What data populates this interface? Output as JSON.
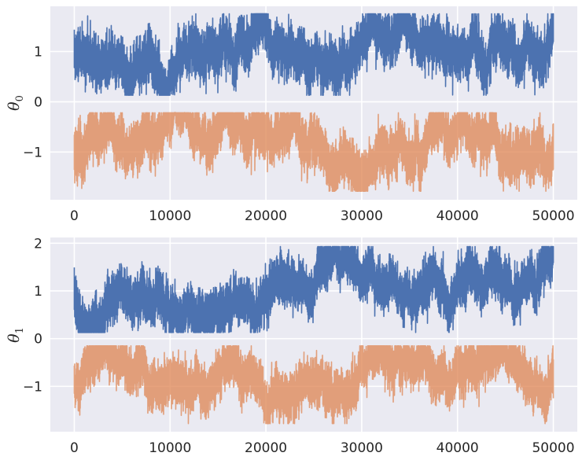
{
  "figure": {
    "background": "#ffffff"
  },
  "style": {
    "axes_facecolor": "#EAEAF2",
    "grid_color": "#ffffff",
    "text_color": "#262626",
    "series_colors": [
      "#4C72B0",
      "#DD8452"
    ]
  },
  "chart_data": [
    {
      "type": "line",
      "ylabel": "θ0",
      "ylabel_main": "θ",
      "ylabel_sub": "0",
      "xlim": [
        -2500,
        52500
      ],
      "ylim": [
        -1.95,
        1.9
      ],
      "xticks": [
        0,
        10000,
        20000,
        30000,
        40000,
        50000
      ],
      "xtick_labels": [
        "0",
        "10000",
        "20000",
        "30000",
        "40000",
        "50000"
      ],
      "yticks": [
        1,
        0,
        -1
      ],
      "ytick_labels": [
        "1",
        "0",
        "−1"
      ],
      "grid": true,
      "legend": "none",
      "n_samples": 50000,
      "series": [
        {
          "color": "#4C72B0",
          "mean": 1.0,
          "y_min": 0.13,
          "y_max": 1.75,
          "seed": 11
        },
        {
          "color": "#DD8452",
          "alpha": 0.75,
          "mean": -1.0,
          "y_min": -1.78,
          "y_max": -0.22,
          "seed": 23
        }
      ]
    },
    {
      "type": "line",
      "ylabel": "θ1",
      "ylabel_main": "θ",
      "ylabel_sub": "1",
      "xlim": [
        -2500,
        52500
      ],
      "ylim": [
        -1.95,
        2.12
      ],
      "xticks": [
        0,
        10000,
        20000,
        30000,
        40000,
        50000
      ],
      "xtick_labels": [
        "0",
        "10000",
        "20000",
        "30000",
        "40000",
        "50000"
      ],
      "yticks": [
        2,
        1,
        0,
        -1
      ],
      "ytick_labels": [
        "2",
        "1",
        "0",
        "−1"
      ],
      "grid": true,
      "legend": "none",
      "n_samples": 50000,
      "series": [
        {
          "color": "#4C72B0",
          "mean": 1.0,
          "y_min": 0.13,
          "y_max": 1.93,
          "seed": 37
        },
        {
          "color": "#DD8452",
          "alpha": 0.75,
          "mean": -1.0,
          "y_min": -1.78,
          "y_max": -0.15,
          "seed": 51
        }
      ]
    }
  ]
}
